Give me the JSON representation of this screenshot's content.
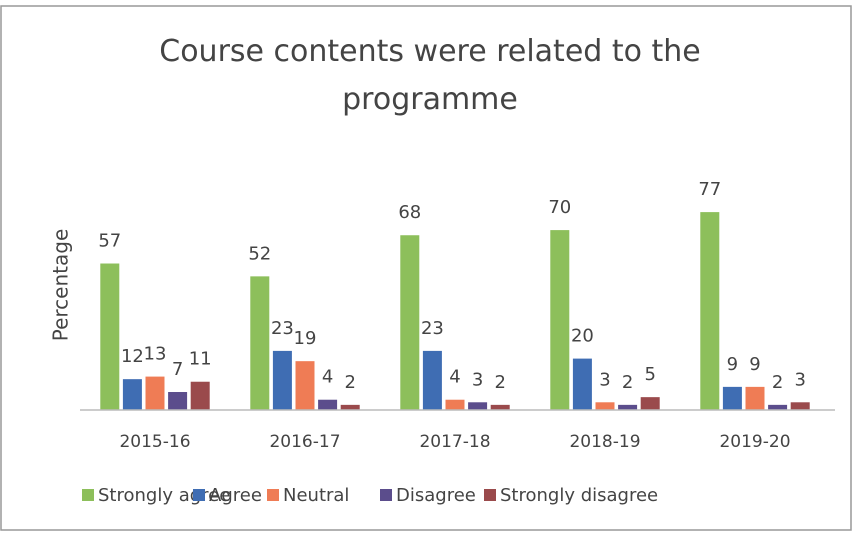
{
  "chart_data": {
    "type": "bar",
    "title": "Course contents were related to the programme",
    "y_label": "Percentage",
    "categories": [
      "2015-16",
      "2016-17",
      "2017-18",
      "2018-19",
      "2019-20"
    ],
    "series": [
      {
        "name": "Strongly agree",
        "color": "#8dbf5b",
        "values": [
          57,
          52,
          68,
          70,
          77
        ]
      },
      {
        "name": "Agree",
        "color": "#3f6db3",
        "values": [
          12,
          23,
          23,
          20,
          9
        ]
      },
      {
        "name": "Neutral",
        "color": "#ef7c55",
        "values": [
          13,
          19,
          4,
          3,
          9
        ]
      },
      {
        "name": "Disagree",
        "color": "#5b4d8c",
        "values": [
          7,
          4,
          3,
          2,
          2
        ]
      },
      {
        "name": "Strongly disagree",
        "color": "#9a4a4c",
        "values": [
          11,
          2,
          2,
          5,
          3
        ]
      }
    ],
    "ylim": [
      0,
      100
    ],
    "legend": "bottom"
  }
}
